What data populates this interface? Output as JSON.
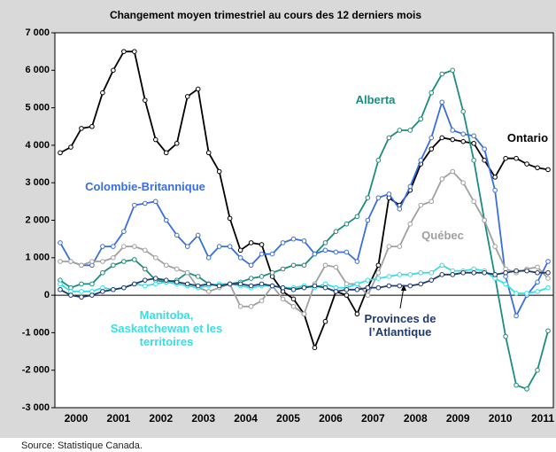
{
  "chart_data": {
    "type": "line",
    "title": "Changement moyen trimestriel au cours des 12 derniers mois",
    "source": "Source: Statistique Canada.",
    "x": [
      2000.125,
      2000.375,
      2000.625,
      2000.875,
      2001.125,
      2001.375,
      2001.625,
      2001.875,
      2002.125,
      2002.375,
      2002.625,
      2002.875,
      2003.125,
      2003.375,
      2003.625,
      2003.875,
      2004.125,
      2004.375,
      2004.625,
      2004.875,
      2005.125,
      2005.375,
      2005.625,
      2005.875,
      2006.125,
      2006.375,
      2006.625,
      2006.875,
      2007.125,
      2007.375,
      2007.625,
      2007.875,
      2008.125,
      2008.375,
      2008.625,
      2008.875,
      2009.125,
      2009.375,
      2009.625,
      2009.875,
      2010.125,
      2010.375,
      2010.625,
      2010.875,
      2011.125,
      2011.375,
      2011.625
    ],
    "xlim": [
      2000,
      2011.75
    ],
    "xticks": [
      {
        "value": 2000.5,
        "label": "2000"
      },
      {
        "value": 2001.5,
        "label": "2001"
      },
      {
        "value": 2002.5,
        "label": "2002"
      },
      {
        "value": 2003.5,
        "label": "2003"
      },
      {
        "value": 2004.5,
        "label": "2004"
      },
      {
        "value": 2005.5,
        "label": "2005"
      },
      {
        "value": 2006.5,
        "label": "2006"
      },
      {
        "value": 2007.5,
        "label": "2007"
      },
      {
        "value": 2008.5,
        "label": "2008"
      },
      {
        "value": 2009.5,
        "label": "2009"
      },
      {
        "value": 2010.5,
        "label": "2010"
      },
      {
        "value": 2011.5,
        "label": "2011"
      }
    ],
    "ylim": [
      -3000,
      7000
    ],
    "yticks": [
      {
        "value": 7000,
        "label": "7 000"
      },
      {
        "value": 6000,
        "label": "6 000"
      },
      {
        "value": 5000,
        "label": "5 000"
      },
      {
        "value": 4000,
        "label": "4 000"
      },
      {
        "value": 3000,
        "label": "3 000"
      },
      {
        "value": 2000,
        "label": "2 000"
      },
      {
        "value": 1000,
        "label": "1 000"
      },
      0,
      {
        "value": -1000,
        "label": "-1 000"
      },
      {
        "value": -2000,
        "label": "-2 000"
      },
      {
        "value": -3000,
        "label": "-3 000"
      }
    ],
    "series": [
      {
        "name": "Ontario",
        "color": "#000000",
        "values": [
          3800,
          3950,
          4450,
          4500,
          5400,
          6000,
          6500,
          6500,
          5200,
          4150,
          3800,
          4050,
          5300,
          5500,
          3800,
          3300,
          2050,
          1200,
          1400,
          1350,
          500,
          100,
          -100,
          -500,
          -1400,
          -700,
          100,
          0,
          -500,
          200,
          800,
          2600,
          2400,
          2800,
          3500,
          3900,
          4200,
          4150,
          4100,
          4050,
          3600,
          3150,
          3650,
          3650,
          3500,
          3400,
          3350
        ]
      },
      {
        "name": "Alberta",
        "color": "#1a8c80",
        "values": [
          400,
          200,
          300,
          300,
          600,
          800,
          900,
          950,
          700,
          400,
          350,
          400,
          600,
          500,
          300,
          250,
          300,
          350,
          450,
          500,
          600,
          700,
          800,
          800,
          1100,
          1400,
          1700,
          1900,
          2100,
          2600,
          3600,
          4200,
          4400,
          4400,
          4700,
          5400,
          5900,
          6000,
          4900,
          3600,
          2000,
          500,
          -1100,
          -2400,
          -2500,
          -2000,
          -950
        ]
      },
      {
        "name": "Colombie-Britannique",
        "color": "#3a6ee0",
        "values": [
          1400,
          900,
          800,
          800,
          1300,
          1300,
          1700,
          2400,
          2450,
          2500,
          2000,
          1600,
          1300,
          1600,
          1000,
          1300,
          1300,
          1000,
          800,
          1100,
          1100,
          1400,
          1500,
          1450,
          1100,
          1200,
          1150,
          1150,
          900,
          2000,
          2600,
          2700,
          2300,
          2900,
          3600,
          4200,
          5150,
          4400,
          4300,
          4250,
          3900,
          2800,
          500,
          -550,
          0,
          350,
          900
        ]
      },
      {
        "name": "Québec",
        "color": "#a0a0a0",
        "values": [
          900,
          900,
          800,
          900,
          900,
          1000,
          1300,
          1300,
          1200,
          1000,
          800,
          700,
          600,
          200,
          100,
          200,
          300,
          -300,
          -300,
          -150,
          250,
          -100,
          -300,
          -500,
          300,
          800,
          750,
          300,
          300,
          0,
          600,
          1300,
          1300,
          1900,
          2400,
          2500,
          3100,
          3300,
          3000,
          2500,
          2000,
          1300,
          700,
          600,
          700,
          750,
          450
        ]
      },
      {
        "name": "Manitoba, Saskatchewan et les territoires",
        "color": "#33e0e6",
        "values": [
          300,
          100,
          100,
          100,
          200,
          150,
          200,
          300,
          250,
          300,
          350,
          300,
          250,
          200,
          250,
          300,
          300,
          250,
          200,
          250,
          250,
          200,
          200,
          250,
          200,
          300,
          200,
          200,
          300,
          400,
          450,
          500,
          550,
          550,
          600,
          600,
          800,
          650,
          650,
          700,
          650,
          450,
          300,
          50,
          50,
          100,
          200
        ]
      },
      {
        "name": "Provinces de l’Atlantique",
        "color": "#1f3a6e",
        "values": [
          150,
          0,
          -50,
          0,
          100,
          150,
          200,
          300,
          400,
          450,
          400,
          350,
          300,
          250,
          300,
          250,
          300,
          300,
          250,
          300,
          250,
          200,
          150,
          200,
          250,
          200,
          100,
          150,
          150,
          200,
          200,
          250,
          250,
          250,
          300,
          400,
          550,
          550,
          600,
          600,
          600,
          550,
          600,
          650,
          650,
          600,
          600
        ]
      }
    ]
  }
}
